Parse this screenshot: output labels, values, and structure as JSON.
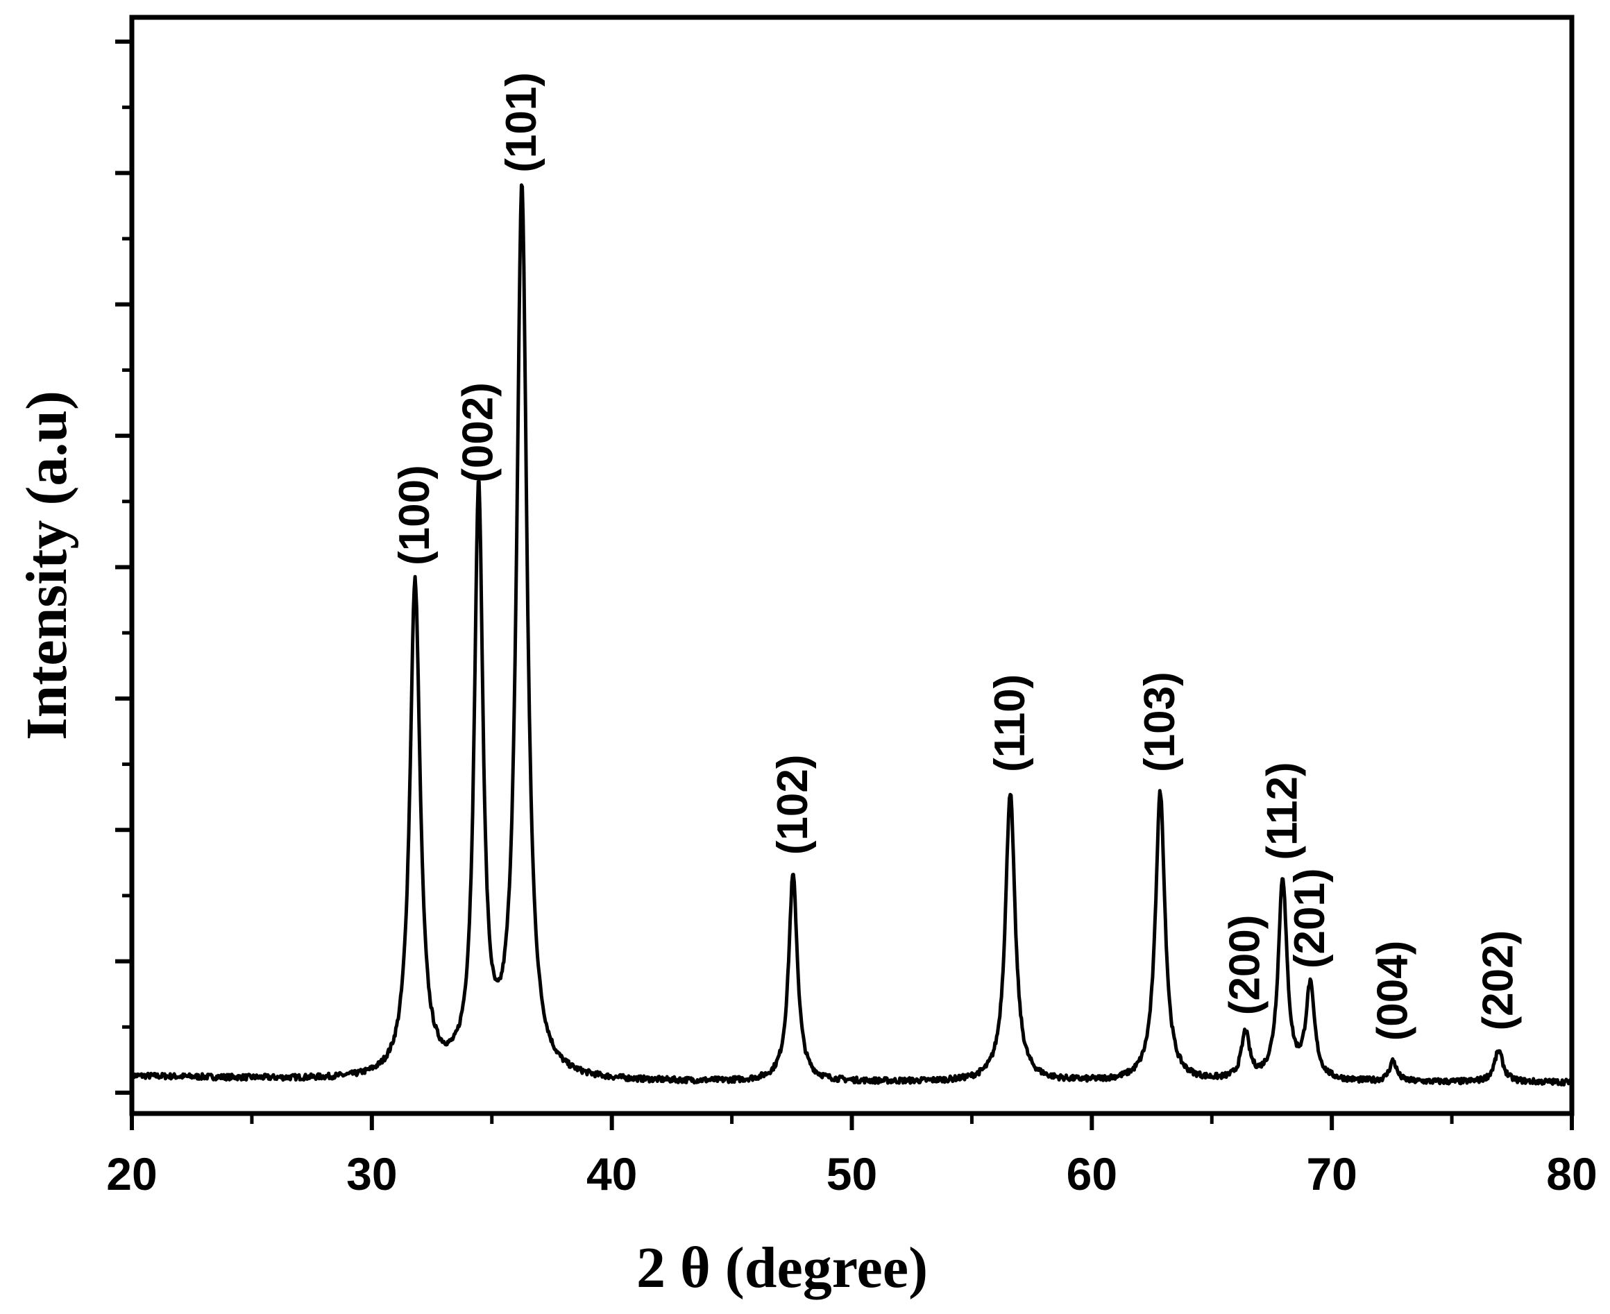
{
  "chart_data": {
    "type": "line",
    "title": "",
    "xlabel": "2 θ (degree)",
    "ylabel": "Intensity (a.u)",
    "xlim": [
      20,
      80
    ],
    "ylim": [
      0,
      100
    ],
    "x_ticks": [
      "20",
      "30",
      "40",
      "50",
      "60",
      "70",
      "80"
    ],
    "y_tick_labels": false,
    "grid": false,
    "legend": "none",
    "line_color": "#000000",
    "baseline": 2.0,
    "peaks": [
      {
        "label": "(100)",
        "x": 31.8,
        "y": 48.0,
        "width": 0.26
      },
      {
        "label": "(002)",
        "x": 34.45,
        "y": 56.0,
        "width": 0.22
      },
      {
        "label": "(101)",
        "x": 36.25,
        "y": 86.0,
        "width": 0.26
      },
      {
        "label": "(102)",
        "x": 47.55,
        "y": 20.0,
        "width": 0.22
      },
      {
        "label": "(110)",
        "x": 56.6,
        "y": 28.0,
        "width": 0.24
      },
      {
        "label": "(103)",
        "x": 62.85,
        "y": 28.0,
        "width": 0.24
      },
      {
        "label": "(200)",
        "x": 66.4,
        "y": 4.5,
        "width": 0.2
      },
      {
        "label": "(112)",
        "x": 67.95,
        "y": 19.5,
        "width": 0.22
      },
      {
        "label": "(201)",
        "x": 69.1,
        "y": 9.0,
        "width": 0.22
      },
      {
        "label": "(004)",
        "x": 72.55,
        "y": 2.0,
        "width": 0.18
      },
      {
        "label": "(202)",
        "x": 76.95,
        "y": 3.0,
        "width": 0.22
      }
    ]
  }
}
